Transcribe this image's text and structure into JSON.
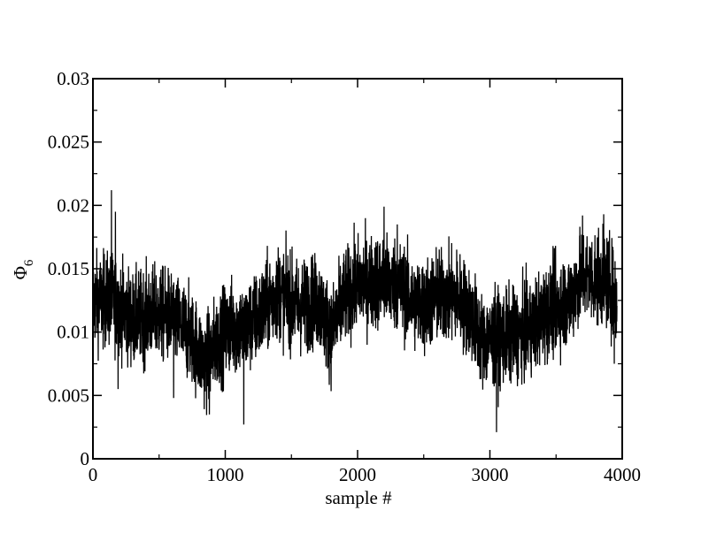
{
  "chart_data": {
    "type": "line",
    "xlabel": "sample #",
    "ylabel": "Φ",
    "ylabel_subscript": "6",
    "xlim": [
      0,
      4000
    ],
    "ylim": [
      0,
      0.03
    ],
    "x_ticks": [
      0,
      1000,
      2000,
      3000,
      4000
    ],
    "x_tick_labels": [
      "0",
      "1000",
      "2000",
      "3000",
      "4000"
    ],
    "y_ticks": [
      0,
      0.005,
      0.01,
      0.015,
      0.02,
      0.025,
      0.03
    ],
    "y_tick_labels": [
      "0",
      "0.005",
      "0.01",
      "0.015",
      "0.02",
      "0.025",
      "0.03"
    ],
    "grid": false,
    "series": [
      {
        "color": "#000000",
        "n_points": 4000,
        "x_step": 1,
        "trend": [
          [
            0,
            0.0125
          ],
          [
            150,
            0.0125
          ],
          [
            300,
            0.011
          ],
          [
            450,
            0.0115
          ],
          [
            600,
            0.0112
          ],
          [
            750,
            0.0095
          ],
          [
            850,
            0.0075
          ],
          [
            950,
            0.0095
          ],
          [
            1050,
            0.0105
          ],
          [
            1150,
            0.0102
          ],
          [
            1250,
            0.0112
          ],
          [
            1400,
            0.0132
          ],
          [
            1550,
            0.012
          ],
          [
            1700,
            0.0125
          ],
          [
            1800,
            0.0098
          ],
          [
            1900,
            0.0128
          ],
          [
            2000,
            0.0138
          ],
          [
            2150,
            0.014
          ],
          [
            2300,
            0.0138
          ],
          [
            2400,
            0.0125
          ],
          [
            2500,
            0.012
          ],
          [
            2600,
            0.0128
          ],
          [
            2750,
            0.0128
          ],
          [
            2850,
            0.0115
          ],
          [
            2950,
            0.0092
          ],
          [
            3050,
            0.0095
          ],
          [
            3200,
            0.0098
          ],
          [
            3300,
            0.0102
          ],
          [
            3450,
            0.0118
          ],
          [
            3600,
            0.0125
          ],
          [
            3700,
            0.0145
          ],
          [
            3800,
            0.0142
          ],
          [
            3900,
            0.014
          ],
          [
            3960,
            0.0122
          ]
        ],
        "noise_amplitude": 0.0018,
        "extremes": [
          [
            140,
            0.0212
          ],
          [
            170,
            0.0195
          ],
          [
            190,
            0.0055
          ],
          [
            610,
            0.0048
          ],
          [
            880,
            0.0035
          ],
          [
            1140,
            0.0027
          ],
          [
            2200,
            0.0199
          ],
          [
            2300,
            0.0185
          ],
          [
            3050,
            0.0021
          ],
          [
            3700,
            0.0192
          ],
          [
            3860,
            0.0193
          ],
          [
            3940,
            0.0075
          ]
        ]
      }
    ]
  }
}
